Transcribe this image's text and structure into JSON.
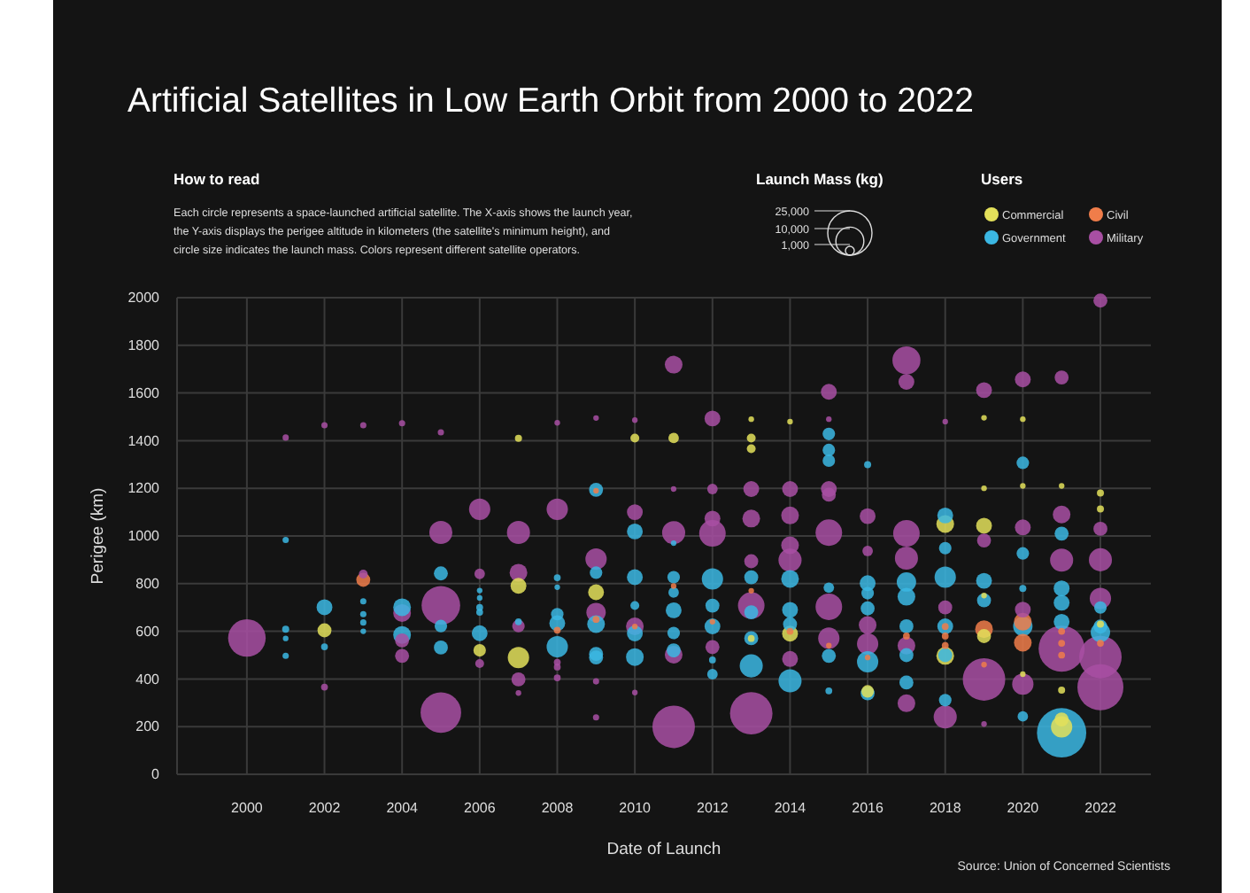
{
  "chart_data": {
    "type": "bubble",
    "title": "Artificial Satellites in Low Earth Orbit from 2000 to 2022",
    "xlabel": "Date of Launch",
    "ylabel": "Perigee (km)",
    "legend_title": "Users",
    "annotations": [
      "How to read",
      "Each circle represents a space-launched artificial satellite. The X-axis shows the launch year, the Y-axis displays the perigee altitude in kilometers (the satellite's minimum height), and circle size indicates the launch mass. Colors represent different satellite operators.",
      "Launch Mass (kg)",
      "Source: Union of Concerned Scientists"
    ],
    "xlim": [
      1998.2,
      2023.3
    ],
    "xticks": [
      2000,
      2002,
      2004,
      2006,
      2008,
      2010,
      2012,
      2014,
      2016,
      2018,
      2020,
      2022
    ],
    "ylim": [
      0,
      2000
    ],
    "yticks": [
      0,
      200,
      400,
      600,
      800,
      1000,
      1200,
      1400,
      1600,
      1800,
      2000
    ],
    "size_legend": [
      {
        "value": 1000,
        "label": "1,000"
      },
      {
        "value": 10000,
        "label": "10,000"
      },
      {
        "value": 25000,
        "label": "25,000"
      }
    ],
    "grid": true,
    "legend": "top right",
    "series": [
      {
        "name": "Military",
        "color": "#a84fa3",
        "x": [
          2000,
          2001,
          2002,
          2002,
          2003,
          2003,
          2004,
          2004,
          2004,
          2004,
          2005,
          2005,
          2005,
          2005,
          2006,
          2006,
          2006,
          2007,
          2007,
          2007,
          2007,
          2007,
          2008,
          2008,
          2008,
          2008,
          2008,
          2009,
          2009,
          2009,
          2009,
          2009,
          2010,
          2010,
          2010,
          2010,
          2011,
          2011,
          2011,
          2011,
          2011,
          2012,
          2012,
          2012,
          2012,
          2012,
          2013,
          2013,
          2013,
          2013,
          2013,
          2014,
          2014,
          2014,
          2014,
          2014,
          2015,
          2015,
          2015,
          2015,
          2015,
          2015,
          2015,
          2016,
          2016,
          2016,
          2016,
          2017,
          2017,
          2017,
          2017,
          2017,
          2017,
          2018,
          2018,
          2018,
          2019,
          2019,
          2019,
          2019,
          2020,
          2020,
          2020,
          2020,
          2021,
          2021,
          2021,
          2021,
          2022,
          2022,
          2022,
          2022,
          2022,
          2022
        ],
        "values": [
          572,
          1413,
          1465,
          366,
          1465,
          840,
          1473,
          677,
          562,
          497,
          1435,
          1015,
          709,
          259,
          1112,
          841,
          465,
          1015,
          846,
          622,
          398,
          341,
          1475,
          1112,
          470,
          450,
          405,
          1495,
          903,
          679,
          390,
          239,
          1486,
          1100,
          621,
          343,
          1719,
          1197,
          1014,
          502,
          199,
          1493,
          1197,
          1073,
          1011,
          534,
          1197,
          1073,
          894,
          708,
          256,
          1197,
          1086,
          961,
          899,
          484,
          1605,
          1490,
          1197,
          1173,
          1014,
          703,
          571,
          1083,
          937,
          626,
          547,
          1737,
          1647,
          1011,
          907,
          540,
          298,
          1480,
          700,
          241,
          1612,
          981,
          398,
          211,
          1657,
          1036,
          691,
          378,
          1665,
          1090,
          899,
          527,
          1988,
          1030,
          900,
          738,
          492,
          365
        ],
        "sizes": [
          18000,
          500,
          500,
          600,
          500,
          1000,
          500,
          4000,
          2500,
          2500,
          500,
          6800,
          19000,
          21000,
          5800,
          1400,
          1000,
          6800,
          4000,
          2000,
          2500,
          400,
          400,
          5800,
          600,
          600,
          600,
          400,
          5800,
          4800,
          500,
          500,
          400,
          3200,
          4000,
          400,
          4000,
          400,
          6800,
          4000,
          23000,
          3200,
          1400,
          3200,
          9000,
          2500,
          3200,
          4000,
          2500,
          9000,
          23000,
          3200,
          4000,
          4000,
          6800,
          3200,
          3200,
          400,
          3200,
          2500,
          9000,
          9000,
          5800,
          3200,
          1400,
          4000,
          5800,
          10000,
          3200,
          9000,
          6800,
          4000,
          4000,
          400,
          2500,
          6800,
          3200,
          2500,
          23000,
          400,
          3200,
          3200,
          3200,
          5800,
          2500,
          4000,
          6800,
          27000,
          2500,
          2500,
          6800,
          5800,
          23000,
          27000
        ]
      },
      {
        "name": "Government",
        "color": "#3bb7e3",
        "x": [
          2001,
          2001,
          2001,
          2001,
          2002,
          2002,
          2003,
          2003,
          2003,
          2003,
          2004,
          2004,
          2005,
          2005,
          2005,
          2006,
          2006,
          2006,
          2006,
          2006,
          2007,
          2008,
          2008,
          2008,
          2008,
          2008,
          2009,
          2009,
          2009,
          2009,
          2009,
          2010,
          2010,
          2010,
          2010,
          2010,
          2011,
          2011,
          2011,
          2011,
          2011,
          2011,
          2012,
          2012,
          2012,
          2012,
          2012,
          2013,
          2013,
          2013,
          2013,
          2014,
          2014,
          2014,
          2014,
          2015,
          2015,
          2015,
          2015,
          2015,
          2015,
          2016,
          2016,
          2016,
          2016,
          2016,
          2016,
          2017,
          2017,
          2017,
          2017,
          2017,
          2018,
          2018,
          2018,
          2018,
          2018,
          2018,
          2019,
          2019,
          2020,
          2020,
          2020,
          2020,
          2020,
          2021,
          2021,
          2021,
          2021,
          2021,
          2022,
          2022,
          2022
        ],
        "values": [
          983,
          609,
          570,
          497,
          701,
          535,
          726,
          672,
          637,
          600,
          701,
          585,
          843,
          622,
          532,
          771,
          740,
          700,
          680,
          592,
          640,
          825,
          785,
          672,
          634,
          535,
          1194,
          846,
          630,
          505,
          490,
          1019,
          827,
          708,
          591,
          492,
          970,
          827,
          763,
          688,
          593,
          520,
          820,
          708,
          621,
          480,
          420,
          827,
          680,
          571,
          455,
          820,
          690,
          630,
          392,
          1428,
          1361,
          1316,
          783,
          497,
          350,
          1299,
          802,
          760,
          696,
          472,
          340,
          807,
          745,
          621,
          500,
          385,
          1086,
          949,
          827,
          621,
          500,
          311,
          812,
          730,
          1307,
          927,
          780,
          621,
          243,
          1010,
          780,
          720,
          640,
          174,
          700,
          620,
          596
        ],
        "sizes": [
          500,
          640,
          400,
          500,
          3200,
          600,
          500,
          500,
          500,
          400,
          4000,
          4000,
          2500,
          2000,
          2500,
          400,
          400,
          600,
          600,
          3200,
          600,
          600,
          400,
          2000,
          3200,
          5800,
          2500,
          2000,
          4000,
          2500,
          2500,
          3200,
          3200,
          1000,
          3200,
          4000,
          400,
          2000,
          1400,
          3200,
          2000,
          2500,
          5800,
          2500,
          3200,
          600,
          1400,
          2500,
          2500,
          2500,
          6800,
          4000,
          3200,
          2500,
          6800,
          2000,
          2000,
          2000,
          1400,
          2500,
          600,
          640,
          3200,
          2000,
          2500,
          5800,
          2500,
          4800,
          4000,
          2500,
          2500,
          2500,
          3200,
          2000,
          5800,
          3200,
          2500,
          2000,
          3200,
          2500,
          2000,
          2000,
          640,
          4800,
          1400,
          2500,
          3200,
          3200,
          3200,
          31000,
          2000,
          2500,
          4800
        ]
      },
      {
        "name": "Commercial",
        "color": "#e3e05a",
        "x": [
          2002,
          2006,
          2007,
          2007,
          2007,
          2009,
          2010,
          2011,
          2013,
          2013,
          2013,
          2013,
          2014,
          2014,
          2016,
          2018,
          2018,
          2019,
          2019,
          2019,
          2019,
          2019,
          2020,
          2020,
          2020,
          2021,
          2021,
          2021,
          2021,
          2022,
          2022,
          2022
        ],
        "values": [
          604,
          520,
          1410,
          791,
          490,
          764,
          1411,
          1411,
          1490,
          1411,
          1366,
          570,
          1480,
          590,
          348,
          1050,
          497,
          1496,
          1200,
          1043,
          750,
          580,
          1490,
          1210,
          420,
          1210,
          353,
          199,
          230,
          1180,
          1113,
          630
        ],
        "sizes": [
          2500,
          2000,
          640,
          3200,
          5800,
          3200,
          1000,
          1400,
          400,
          1000,
          1000,
          600,
          400,
          3200,
          2000,
          4000,
          4000,
          400,
          400,
          3200,
          400,
          2500,
          400,
          400,
          400,
          400,
          640,
          5800,
          2500,
          640,
          640,
          640
        ]
      },
      {
        "name": "Civil",
        "color": "#f07d4a",
        "x": [
          2003,
          2008,
          2009,
          2009,
          2010,
          2011,
          2012,
          2013,
          2014,
          2015,
          2016,
          2017,
          2018,
          2018,
          2018,
          2019,
          2019,
          2020,
          2020,
          2021,
          2021,
          2021,
          2022
        ],
        "values": [
          816,
          605,
          1190,
          650,
          620,
          790,
          640,
          770,
          600,
          540,
          490,
          580,
          620,
          580,
          540,
          609,
          460,
          640,
          552,
          600,
          550,
          500,
          550
        ],
        "sizes": [
          2500,
          600,
          400,
          600,
          400,
          400,
          400,
          400,
          600,
          400,
          400,
          600,
          600,
          600,
          600,
          4000,
          400,
          4000,
          4000,
          600,
          600,
          600,
          600
        ]
      }
    ]
  }
}
